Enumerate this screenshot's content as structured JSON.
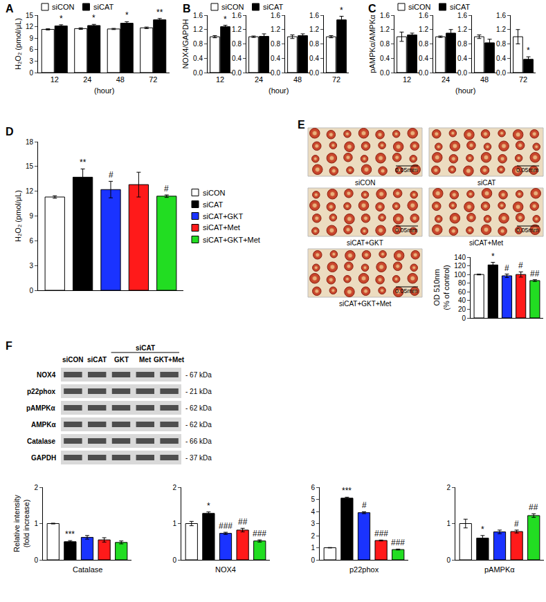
{
  "chart_data": [
    {
      "label": "A",
      "type": "bar",
      "categories": [
        "12",
        "24",
        "48",
        "72"
      ],
      "x_label": "(hour)",
      "y_label": "H₂O₂ (pmol/μL)",
      "ylim": [
        0,
        15
      ],
      "yticks": [
        0,
        3,
        6,
        9,
        12,
        15
      ],
      "legend": "top",
      "series": [
        {
          "name": "siCON",
          "color": "#ffffff",
          "values": [
            11.3,
            11.5,
            11.4,
            11.7
          ],
          "errors": [
            0.15,
            0.2,
            0.15,
            0.2
          ]
        },
        {
          "name": "siCAT",
          "color": "#000000",
          "values": [
            12.2,
            12.3,
            12.9,
            13.8
          ],
          "errors": [
            0.3,
            0.3,
            0.4,
            0.35
          ],
          "significance": [
            "*",
            "*",
            "*",
            "**"
          ]
        }
      ]
    },
    {
      "label": "B",
      "type": "bar",
      "facets": [
        "12",
        "24",
        "48",
        "72"
      ],
      "x_label": "(hour)",
      "y_label": "NOX4/GAPDH",
      "ylim": [
        0,
        1.6
      ],
      "yticks": [
        {
          "value": 0,
          "label": "0.0"
        },
        0.4,
        0.8,
        1.2,
        1.6
      ],
      "legend": "top",
      "series": [
        {
          "name": "siCON",
          "color": "#ffffff",
          "values": [
            1.0,
            1.0,
            1.0,
            1.0
          ],
          "errors": [
            0.03,
            0.02,
            0.05,
            0.03
          ]
        },
        {
          "name": "siCAT",
          "color": "#000000",
          "values": [
            1.28,
            1.01,
            1.03,
            1.47
          ],
          "errors": [
            0.04,
            0.07,
            0.05,
            0.1
          ],
          "significance": [
            "*",
            null,
            null,
            "*"
          ]
        }
      ]
    },
    {
      "label": "C",
      "type": "bar",
      "facets": [
        "12",
        "24",
        "48",
        "72"
      ],
      "x_label": "(hour)",
      "y_label": "pAMPKα/AMPKα",
      "ylim": [
        0,
        1.6
      ],
      "yticks": [
        {
          "value": 0,
          "label": "0.0"
        },
        0.4,
        0.8,
        1.2,
        1.6
      ],
      "legend": "top",
      "series": [
        {
          "name": "siCON",
          "color": "#ffffff",
          "values": [
            1.0,
            1.0,
            1.0,
            1.0
          ],
          "errors": [
            0.13,
            0.02,
            0.05,
            0.2
          ]
        },
        {
          "name": "siCAT",
          "color": "#000000",
          "values": [
            1.05,
            1.1,
            0.83,
            0.37
          ],
          "errors": [
            0.05,
            0.1,
            0.1,
            0.07
          ],
          "significance": [
            null,
            null,
            null,
            "*"
          ]
        }
      ]
    },
    {
      "label": "D",
      "type": "bar",
      "y_label": "H₂O₂ (pmol/μL)",
      "ylim": [
        0,
        18
      ],
      "yticks": [
        0,
        3,
        6,
        9,
        12,
        15,
        18
      ],
      "legend": "right",
      "series": [
        {
          "name": "siCON",
          "color": "#ffffff",
          "values": [
            11.3
          ],
          "errors": [
            0.15
          ]
        },
        {
          "name": "siCAT",
          "color": "#000000",
          "values": [
            13.7
          ],
          "errors": [
            1.0
          ],
          "significance": [
            "**"
          ]
        },
        {
          "name": "siCAT+GKT",
          "color": "#1a33ff",
          "values": [
            12.2
          ],
          "errors": [
            1.0
          ],
          "significance": [
            "#"
          ]
        },
        {
          "name": "siCAT+Met",
          "color": "#ff1a1a",
          "values": [
            12.8
          ],
          "errors": [
            1.5
          ]
        },
        {
          "name": "siCAT+GKT+Met",
          "color": "#22dd22",
          "values": [
            11.4
          ],
          "errors": [
            0.15
          ],
          "significance": [
            "#"
          ]
        }
      ]
    },
    {
      "label": "E",
      "type": "bar",
      "images": [
        {
          "label": "siCON",
          "scale": "0.05mm"
        },
        {
          "label": "siCAT",
          "scale": "0.05mm"
        },
        {
          "label": "siCAT+GKT",
          "scale": "0.05mm"
        },
        {
          "label": "siCAT+Met",
          "scale": "0.05mm"
        },
        {
          "label": "siCAT+GKT+Met",
          "scale": "0.05mm"
        }
      ],
      "y_label": [
        "OD 510nm",
        "(% of control)"
      ],
      "ylim": [
        0,
        140
      ],
      "yticks": [
        0,
        20,
        40,
        60,
        80,
        100,
        120,
        140
      ],
      "values": [
        100,
        122,
        97,
        100,
        86
      ],
      "errors": [
        1,
        6,
        4,
        6,
        2
      ],
      "colors": [
        "#ffffff",
        "#000000",
        "#1a33ff",
        "#ff1a1a",
        "#22dd22"
      ],
      "significance": [
        null,
        "*",
        "#",
        "#",
        "##"
      ]
    },
    {
      "type": "bar",
      "x_label": "Catalase",
      "y_label": [
        "Relative intensity",
        "(fold increase)"
      ],
      "ylim": [
        0,
        2
      ],
      "yticks": [
        0,
        1,
        2
      ],
      "values": [
        1.0,
        0.5,
        0.62,
        0.55,
        0.48
      ],
      "errors": [
        0.01,
        0.03,
        0.05,
        0.06,
        0.04
      ],
      "colors": [
        "#ffffff",
        "#000000",
        "#1a33ff",
        "#ff1a1a",
        "#22dd22"
      ],
      "significance": [
        null,
        "***",
        null,
        null,
        null
      ]
    },
    {
      "type": "bar",
      "x_label": "NOX4",
      "ylim": [
        0,
        2
      ],
      "yticks": [
        0,
        1,
        2
      ],
      "values": [
        1.0,
        1.28,
        0.73,
        0.82,
        0.52
      ],
      "errors": [
        0.06,
        0.04,
        0.03,
        0.05,
        0.03
      ],
      "colors": [
        "#ffffff",
        "#000000",
        "#1a33ff",
        "#ff1a1a",
        "#22dd22"
      ],
      "significance": [
        null,
        "*",
        "###",
        "##",
        "###"
      ]
    },
    {
      "type": "bar",
      "x_label": "p22phox",
      "ylim": [
        0,
        6
      ],
      "yticks": [
        0,
        1,
        2,
        3,
        4,
        5,
        6
      ],
      "values": [
        1.0,
        5.1,
        3.9,
        1.6,
        0.85
      ],
      "errors": [
        0.02,
        0.08,
        0.08,
        0.04,
        0.04
      ],
      "colors": [
        "#ffffff",
        "#000000",
        "#1a33ff",
        "#ff1a1a",
        "#22dd22"
      ],
      "significance": [
        null,
        "***",
        "#",
        "###",
        "###"
      ]
    },
    {
      "type": "bar",
      "x_label": "pAMPKα",
      "ylim": [
        0,
        2
      ],
      "yticks": [
        0,
        1,
        2
      ],
      "values": [
        1.0,
        0.6,
        0.77,
        0.78,
        1.22
      ],
      "errors": [
        0.12,
        0.07,
        0.05,
        0.04,
        0.05
      ],
      "colors": [
        "#ffffff",
        "#000000",
        "#1a33ff",
        "#ff1a1a",
        "#22dd22"
      ],
      "significance": [
        null,
        "*",
        null,
        "#",
        "##"
      ]
    }
  ],
  "blot": {
    "label": "F",
    "lanes": [
      {
        "label": "siCON"
      },
      {
        "label": "siCAT"
      },
      {
        "label": "GKT",
        "group": "siCAT"
      },
      {
        "label": "Met",
        "group": "siCAT"
      },
      {
        "label": "GKT+Met",
        "group": "siCAT"
      }
    ],
    "rows": [
      {
        "name": "NOX4",
        "size": "- 67 kDa"
      },
      {
        "name": "p22phox",
        "size": "- 21 kDa"
      },
      {
        "name": "pAMPKα",
        "size": "- 62 kDa"
      },
      {
        "name": "AMPKα",
        "size": "- 62 kDa"
      },
      {
        "name": "Catalase",
        "size": "- 66 kDa"
      },
      {
        "name": "GAPDH",
        "size": "- 37 kDa"
      }
    ]
  }
}
